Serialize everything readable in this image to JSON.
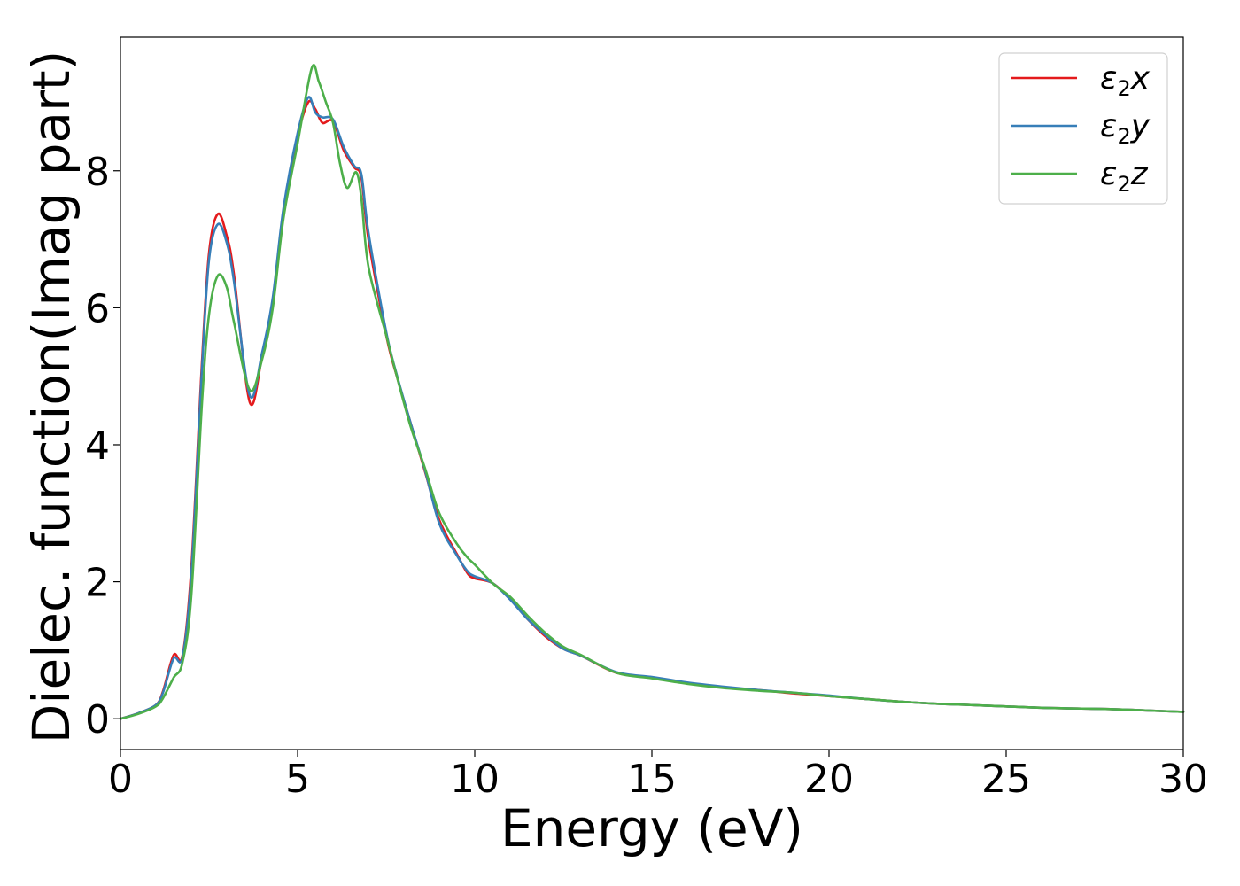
{
  "chart_data": {
    "type": "line",
    "title": "",
    "xlabel": "Energy (eV)",
    "ylabel": "Dielec. function(Imag part)",
    "xlim": [
      0,
      30
    ],
    "ylim": [
      -0.45,
      9.95
    ],
    "xticks": [
      0,
      5,
      10,
      15,
      20,
      25,
      30
    ],
    "yticks": [
      0,
      2,
      4,
      6,
      8
    ],
    "grid": false,
    "legend_position": "top-right",
    "series": [
      {
        "name": "ε₂x",
        "legend_main": "ε",
        "legend_sub": "2",
        "legend_suffix": "x",
        "color": "#e41a1c",
        "x": [
          0,
          0.5,
          1.0,
          1.2,
          1.5,
          1.75,
          2.0,
          2.3,
          2.5,
          2.75,
          3.0,
          3.2,
          3.65,
          4.0,
          4.3,
          4.6,
          5.0,
          5.3,
          5.5,
          5.7,
          6.0,
          6.3,
          6.6,
          6.8,
          7.0,
          7.5,
          7.8,
          8.2,
          8.6,
          9.0,
          9.5,
          9.8,
          10.0,
          10.5,
          11.0,
          11.5,
          12.0,
          12.5,
          13.0,
          14.0,
          15.0,
          16.0,
          17.0,
          18.0,
          19.0,
          20.0,
          21.0,
          22.0,
          23.0,
          24.0,
          25.0,
          26.0,
          27.0,
          28.0,
          29.0,
          30.0
        ],
        "y": [
          0.0,
          0.08,
          0.2,
          0.4,
          0.93,
          0.92,
          2.2,
          5.2,
          6.8,
          7.37,
          7.05,
          6.5,
          4.62,
          5.3,
          6.1,
          7.4,
          8.5,
          9.0,
          8.9,
          8.7,
          8.72,
          8.3,
          8.05,
          7.9,
          7.0,
          5.6,
          5.0,
          4.3,
          3.6,
          2.9,
          2.4,
          2.12,
          2.05,
          1.98,
          1.75,
          1.45,
          1.2,
          1.02,
          0.92,
          0.67,
          0.6,
          0.52,
          0.46,
          0.42,
          0.37,
          0.33,
          0.29,
          0.25,
          0.22,
          0.2,
          0.18,
          0.16,
          0.15,
          0.14,
          0.12,
          0.1
        ]
      },
      {
        "name": "ε₂y",
        "legend_main": "ε",
        "legend_sub": "2",
        "legend_suffix": "y",
        "color": "#377eb8",
        "x": [
          0,
          0.5,
          1.0,
          1.2,
          1.5,
          1.75,
          2.0,
          2.3,
          2.5,
          2.75,
          3.0,
          3.2,
          3.65,
          4.0,
          4.3,
          4.6,
          5.0,
          5.3,
          5.5,
          5.7,
          6.0,
          6.3,
          6.6,
          6.8,
          7.0,
          7.5,
          7.8,
          8.2,
          8.6,
          9.0,
          9.5,
          9.8,
          10.0,
          10.5,
          11.0,
          11.5,
          12.0,
          12.5,
          13.0,
          14.0,
          15.0,
          16.0,
          17.0,
          18.0,
          19.0,
          20.0,
          21.0,
          22.0,
          23.0,
          24.0,
          25.0,
          26.0,
          27.0,
          28.0,
          29.0,
          30.0
        ],
        "y": [
          0.0,
          0.08,
          0.2,
          0.38,
          0.88,
          0.9,
          2.1,
          5.1,
          6.7,
          7.22,
          6.95,
          6.4,
          4.72,
          5.35,
          6.15,
          7.45,
          8.55,
          9.07,
          8.85,
          8.78,
          8.75,
          8.35,
          8.07,
          7.95,
          7.1,
          5.65,
          5.02,
          4.3,
          3.62,
          2.85,
          2.38,
          2.15,
          2.08,
          1.98,
          1.74,
          1.45,
          1.22,
          1.02,
          0.92,
          0.68,
          0.61,
          0.53,
          0.47,
          0.42,
          0.38,
          0.34,
          0.29,
          0.25,
          0.22,
          0.2,
          0.18,
          0.16,
          0.15,
          0.14,
          0.12,
          0.1
        ]
      },
      {
        "name": "ε₂z",
        "legend_main": "ε",
        "legend_sub": "2",
        "legend_suffix": "z",
        "color": "#4daf4a",
        "x": [
          0,
          0.5,
          1.0,
          1.2,
          1.5,
          1.75,
          2.0,
          2.3,
          2.5,
          2.75,
          3.0,
          3.2,
          3.65,
          4.0,
          4.3,
          4.6,
          5.0,
          5.4,
          5.6,
          5.8,
          6.0,
          6.2,
          6.4,
          6.65,
          6.8,
          7.0,
          7.5,
          7.8,
          8.2,
          8.6,
          9.0,
          9.5,
          9.8,
          10.0,
          10.5,
          11.0,
          11.5,
          12.0,
          12.5,
          13.0,
          14.0,
          15.0,
          16.0,
          17.0,
          18.0,
          19.0,
          20.0,
          21.0,
          22.0,
          23.0,
          24.0,
          25.0,
          26.0,
          27.0,
          28.0,
          29.0,
          30.0
        ],
        "y": [
          0.0,
          0.07,
          0.18,
          0.3,
          0.6,
          0.82,
          1.8,
          4.6,
          5.9,
          6.47,
          6.3,
          5.8,
          4.8,
          5.25,
          6.0,
          7.3,
          8.4,
          9.5,
          9.3,
          9.0,
          8.7,
          8.1,
          7.75,
          7.98,
          7.6,
          6.6,
          5.6,
          5.0,
          4.25,
          3.65,
          3.0,
          2.55,
          2.35,
          2.25,
          1.98,
          1.78,
          1.5,
          1.25,
          1.05,
          0.93,
          0.67,
          0.59,
          0.51,
          0.45,
          0.41,
          0.38,
          0.33,
          0.29,
          0.25,
          0.22,
          0.2,
          0.18,
          0.16,
          0.15,
          0.14,
          0.12,
          0.1
        ]
      }
    ]
  }
}
